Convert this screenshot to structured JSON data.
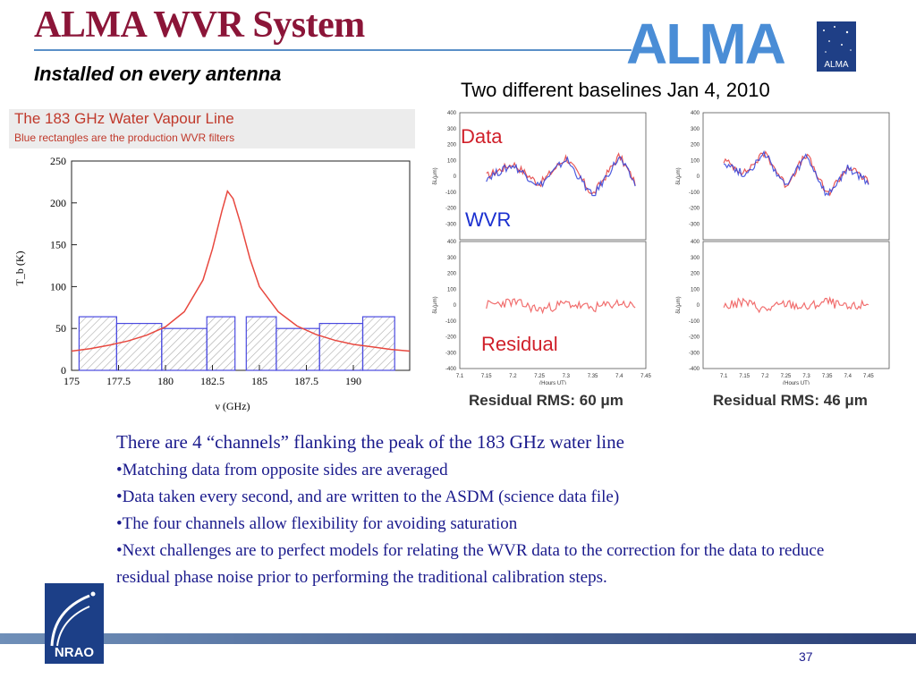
{
  "header": {
    "title": "ALMA WVR System",
    "subtitle": "Installed on every antenna",
    "logo_text": "ALMA",
    "logo_badge_text": "ALMA"
  },
  "figure_left": {
    "title": "The 183 GHz Water Vapour Line",
    "caption": "Blue rectangles are the production WVR filters"
  },
  "figure_right": {
    "heading": "Two different baselines Jan 4, 2010",
    "label_data": "Data",
    "label_wvr": "WVR",
    "label_residual": "Residual",
    "rms_left": "Residual RMS: 60 μm",
    "rms_right": "Residual RMS: 46 μm"
  },
  "body": {
    "lead": "There are 4 “channels” flanking the peak of the 183 GHz water line",
    "bullets": [
      "•Matching data from opposite sides are averaged",
      "•Data taken every second, and are written to the ASDM (science data file)",
      "•The four channels allow flexibility for avoiding saturation",
      "•Next challenges are to perfect models for relating the WVR data to the correction for the data to reduce residual phase noise prior to performing the traditional calibration steps."
    ]
  },
  "footer": {
    "logo_text": "NRAO",
    "page_number": "37"
  },
  "colors": {
    "title": "#8b1538",
    "alma_blue": "#4a8dd6",
    "body_text": "#1a1a8c",
    "curve": "#e8483f",
    "filter_edge": "#4a4ae0"
  },
  "chart_data": [
    {
      "type": "line",
      "title": "The 183 GHz Water Vapour Line",
      "subtitle": "Blue rectangles are the production WVR filters",
      "xlabel": "ν (GHz)",
      "ylabel": "T_b (K)",
      "xlim": [
        175,
        193
      ],
      "ylim": [
        0,
        250
      ],
      "xticks": [
        "175",
        "177.5",
        "180",
        "182.5",
        "185",
        "187.5",
        "190"
      ],
      "yticks": [
        "0",
        "50",
        "100",
        "150",
        "200",
        "250"
      ],
      "series": [
        {
          "x": [
            175,
            176,
            177,
            178,
            179,
            180,
            181,
            182,
            182.5,
            183,
            183.3,
            183.6,
            184,
            184.5,
            185,
            186,
            187,
            188,
            189,
            190,
            191,
            192,
            193
          ],
          "y": [
            23,
            26,
            30,
            35,
            42,
            52,
            70,
            108,
            145,
            190,
            214,
            205,
            175,
            133,
            100,
            70,
            53,
            43,
            36,
            31,
            28,
            25,
            23
          ]
        }
      ],
      "filters": [
        {
          "x0": 175.4,
          "x1": 177.4,
          "y": 64
        },
        {
          "x0": 177.4,
          "x1": 179.8,
          "y": 56
        },
        {
          "x0": 179.8,
          "x1": 182.2,
          "y": 50
        },
        {
          "x0": 182.2,
          "x1": 183.7,
          "y": 64
        },
        {
          "x0": 184.3,
          "x1": 185.9,
          "y": 64
        },
        {
          "x0": 185.9,
          "x1": 188.2,
          "y": 50
        },
        {
          "x0": 188.2,
          "x1": 190.5,
          "y": 56
        },
        {
          "x0": 190.5,
          "x1": 192.2,
          "y": 64
        }
      ],
      "grid": false
    },
    {
      "type": "line",
      "title": "",
      "xlabel": "(Hours UT)",
      "ylabel": "δL(μm)",
      "xlim": [
        7.1,
        7.45
      ],
      "ylim": [
        -400,
        400
      ],
      "xticks": [
        "7.1",
        "7.15",
        "7.2",
        "7.25",
        "7.3",
        "7.35",
        "7.4",
        "7.45"
      ],
      "yticks_top": [
        "-300",
        "-200",
        "-100",
        "0",
        "100",
        "200",
        "300",
        "400"
      ],
      "yticks_bottom": [
        "-400",
        "-300",
        "-200",
        "-100",
        "0",
        "100",
        "200",
        "300",
        "400"
      ],
      "panels": [
        "data_wvr_left",
        "residual_left"
      ],
      "series": [
        {
          "name": "Data",
          "x": [
            7.15,
            7.2,
            7.25,
            7.3,
            7.35,
            7.4,
            7.43
          ],
          "y": [
            0,
            80,
            -50,
            120,
            -120,
            130,
            -40
          ]
        },
        {
          "name": "WVR",
          "x": [
            7.15,
            7.2,
            7.25,
            7.3,
            7.35,
            7.4,
            7.43
          ],
          "y": [
            -10,
            70,
            -60,
            110,
            -130,
            120,
            -50
          ]
        },
        {
          "name": "Residual",
          "x": [
            7.15,
            7.2,
            7.25,
            7.3,
            7.35,
            7.4,
            7.43
          ],
          "y": [
            0,
            20,
            -30,
            10,
            -20,
            15,
            -10
          ]
        }
      ]
    },
    {
      "type": "line",
      "title": "",
      "xlabel": "(Hours UT)",
      "ylabel": "δL(μm)",
      "xlim": [
        7.05,
        7.5
      ],
      "ylim": [
        -400,
        400
      ],
      "xticks": [
        "7.1",
        "7.15",
        "7.2",
        "7.25",
        "7.3",
        "7.35",
        "7.4",
        "7.45"
      ],
      "yticks_top": [
        "-300",
        "-200",
        "-100",
        "0",
        "100",
        "200",
        "300",
        "400"
      ],
      "yticks_bottom": [
        "-400",
        "-300",
        "-200",
        "-100",
        "0",
        "100",
        "200",
        "300",
        "400"
      ],
      "panels": [
        "data_wvr_right",
        "residual_right"
      ],
      "series": [
        {
          "name": "Data",
          "x": [
            7.1,
            7.15,
            7.2,
            7.25,
            7.3,
            7.35,
            7.4,
            7.45
          ],
          "y": [
            100,
            20,
            150,
            -60,
            140,
            -120,
            60,
            -30
          ]
        },
        {
          "name": "WVR",
          "x": [
            7.1,
            7.15,
            7.2,
            7.25,
            7.3,
            7.35,
            7.4,
            7.45
          ],
          "y": [
            90,
            10,
            140,
            -70,
            130,
            -130,
            50,
            -40
          ]
        },
        {
          "name": "Residual",
          "x": [
            7.1,
            7.15,
            7.2,
            7.25,
            7.3,
            7.35,
            7.4,
            7.45
          ],
          "y": [
            -10,
            20,
            -30,
            10,
            -15,
            25,
            -20,
            10
          ]
        }
      ]
    }
  ]
}
